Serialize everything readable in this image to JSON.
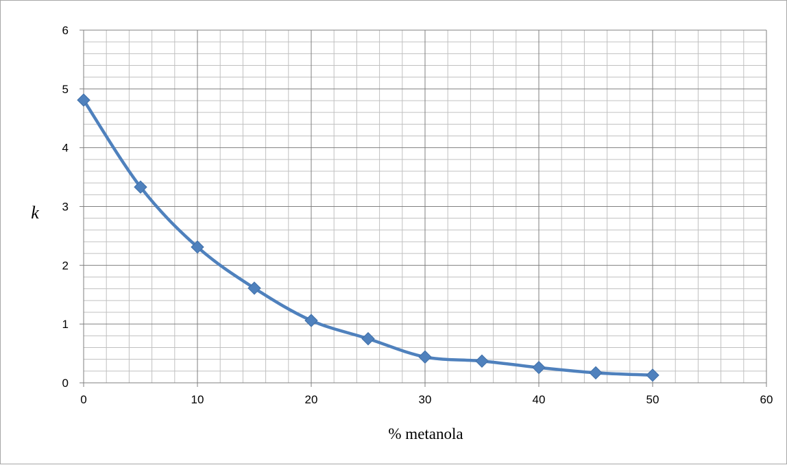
{
  "chart_data": {
    "type": "line",
    "title": "",
    "xlabel": "% metanola",
    "ylabel": "k",
    "xlim": [
      0,
      60
    ],
    "ylim": [
      0,
      6
    ],
    "x_ticks": [
      "0",
      "10",
      "20",
      "30",
      "40",
      "50",
      "60"
    ],
    "y_ticks": [
      "0",
      "1",
      "2",
      "3",
      "4",
      "5",
      "6"
    ],
    "grid": true,
    "minor_grid": true,
    "legend": "none",
    "smooth": true,
    "marker": "diamond",
    "series": [
      {
        "x": [
          0,
          5,
          10,
          15,
          20,
          25,
          30,
          35,
          40,
          45,
          50
        ],
        "y": [
          4.81,
          3.33,
          2.31,
          1.61,
          1.06,
          0.75,
          0.44,
          0.37,
          0.26,
          0.17,
          0.13
        ],
        "color": "#4f81bd"
      }
    ]
  }
}
